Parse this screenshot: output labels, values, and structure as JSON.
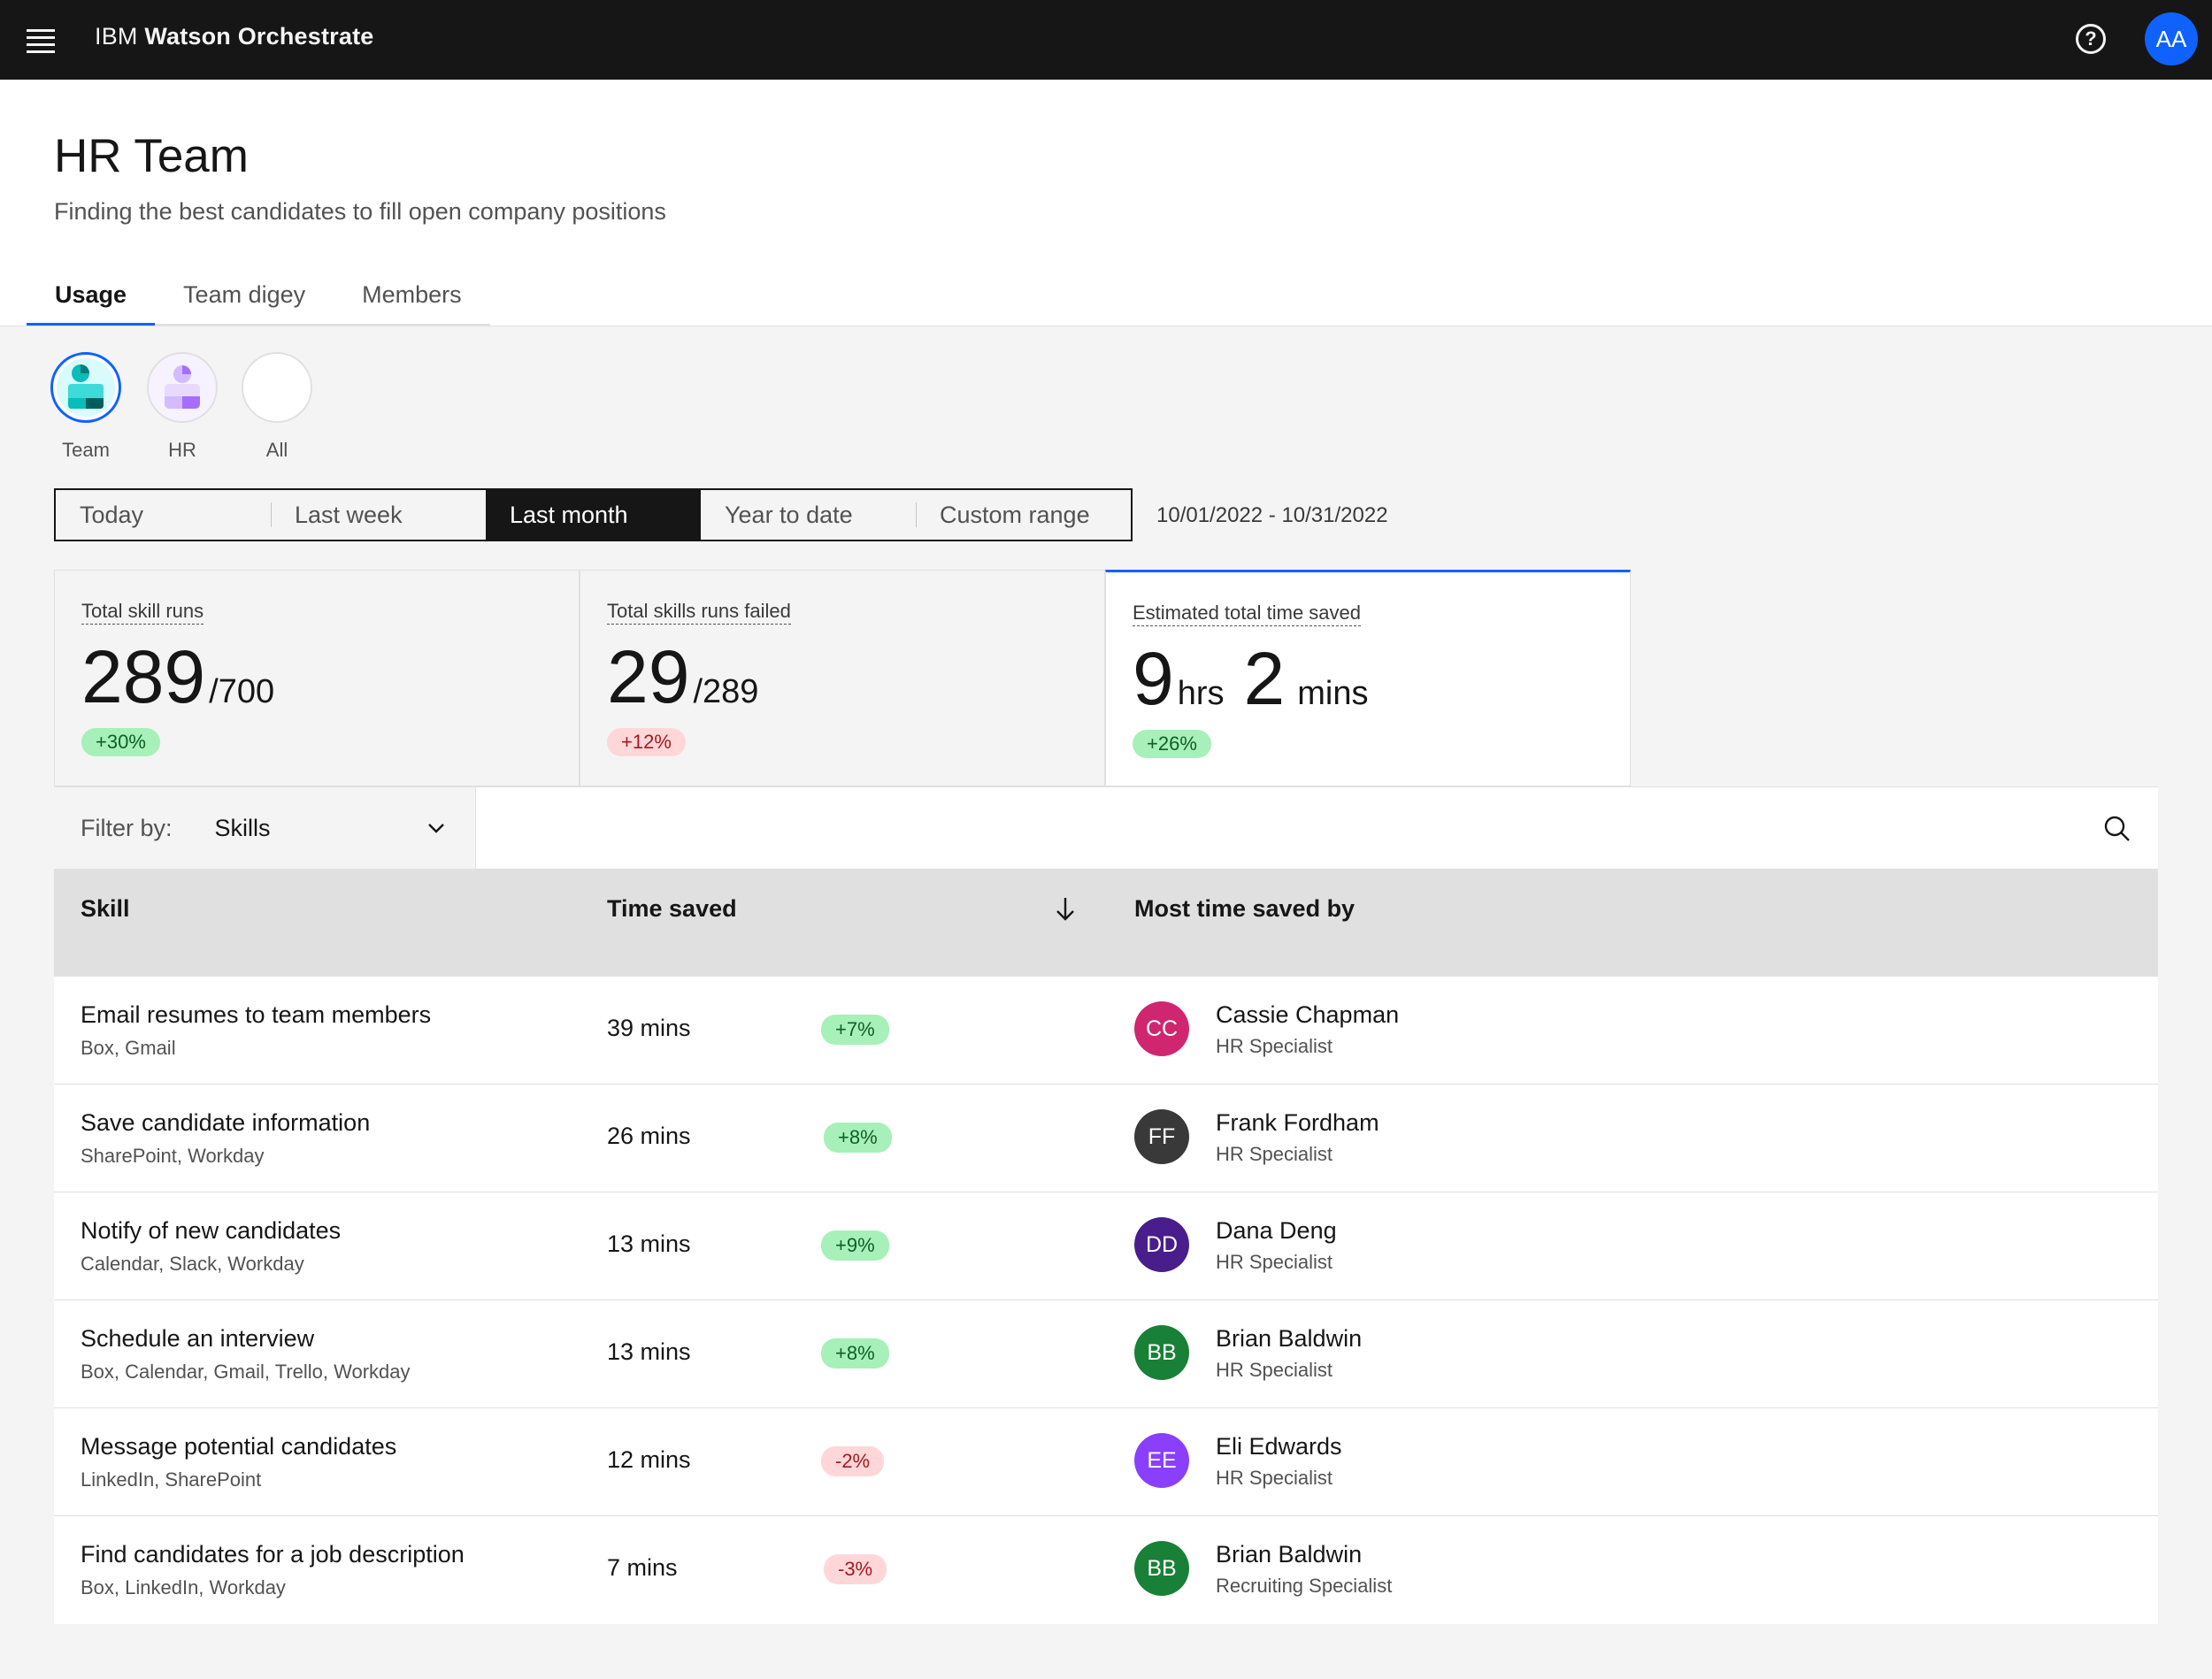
{
  "app": {
    "brand_prefix": "IBM",
    "brand_name": "Watson Orchestrate",
    "user_initials": "AA"
  },
  "header": {
    "title": "HR Team",
    "subtitle": "Finding the best candidates to fill open company positions"
  },
  "tabs": [
    {
      "label": "Usage",
      "active": true
    },
    {
      "label": "Team digey",
      "active": false
    },
    {
      "label": "Members",
      "active": false
    }
  ],
  "scopes": [
    {
      "label": "Team",
      "active": true
    },
    {
      "label": "HR",
      "active": false
    },
    {
      "label": "All",
      "active": false
    }
  ],
  "date_switcher": {
    "options": [
      "Today",
      "Last week",
      "Last month",
      "Year to date",
      "Custom range"
    ],
    "selected": "Last month",
    "range": "10/01/2022 - 10/31/2022"
  },
  "stats": [
    {
      "label": "Total skill runs",
      "value": "289",
      "suffix": "/700",
      "change": "+30%",
      "trend": "positive"
    },
    {
      "label": "Total skills runs failed",
      "value": "29",
      "suffix": "/289",
      "change": "+12%",
      "trend": "negative"
    },
    {
      "label": "Estimated total time saved",
      "value_hours": "9",
      "unit_hours": "hrs",
      "value_mins": "2",
      "unit_mins": "mins",
      "change": "+26%",
      "trend": "positive",
      "active": true
    }
  ],
  "filter": {
    "label": "Filter by:",
    "value": "Skills"
  },
  "table": {
    "columns": [
      "Skill",
      "Time saved",
      "Most time saved by"
    ],
    "rows": [
      {
        "skill": "Email resumes to team members",
        "apps": "Box, Gmail",
        "time": "39 mins",
        "change": "+7%",
        "trend": "positive",
        "initials": "CC",
        "avatar_color": "#d02670",
        "person": "Cassie Chapman",
        "role": "HR Specialist"
      },
      {
        "skill": "Save candidate information",
        "apps": "SharePoint, Workday",
        "time": "26 mins",
        "change": "+8%",
        "trend": "positive",
        "initials": "FF",
        "avatar_color": "#393939",
        "person": "Frank Fordham",
        "role": "HR Specialist"
      },
      {
        "skill": "Notify of new candidates",
        "apps": "Calendar, Slack, Workday",
        "time": "13 mins",
        "change": "+9%",
        "trend": "positive",
        "initials": "DD",
        "avatar_color": "#491d8b",
        "person": "Dana Deng",
        "role": "HR Specialist"
      },
      {
        "skill": "Schedule an interview",
        "apps": "Box, Calendar, Gmail, Trello, Workday",
        "time": "13 mins",
        "change": "+8%",
        "trend": "positive",
        "initials": "BB",
        "avatar_color": "#198038",
        "person": "Brian Baldwin",
        "role": "HR Specialist"
      },
      {
        "skill": "Message potential candidates",
        "apps": "LinkedIn, SharePoint",
        "time": "12 mins",
        "change": "-2%",
        "trend": "negative",
        "initials": "EE",
        "avatar_color": "#8a3ffc",
        "person": "Eli Edwards",
        "role": "HR Specialist"
      },
      {
        "skill": "Find candidates for a job description",
        "apps": "Box, LinkedIn, Workday",
        "time": "7 mins",
        "change": "-3%",
        "trend": "negative",
        "initials": "BB",
        "avatar_color": "#198038",
        "person": "Brian Baldwin",
        "role": "Recruiting Specialist"
      }
    ]
  },
  "icons": {
    "menu": "hamburger-menu-icon",
    "help": "help-icon",
    "chevron": "chevron-down-icon",
    "search": "search-icon",
    "sort": "arrow-down-icon"
  },
  "colors": {
    "accent": "#0f62fe",
    "positive_tag_bg": "#a7f0ba",
    "negative_tag_bg": "#ffd7d9"
  }
}
